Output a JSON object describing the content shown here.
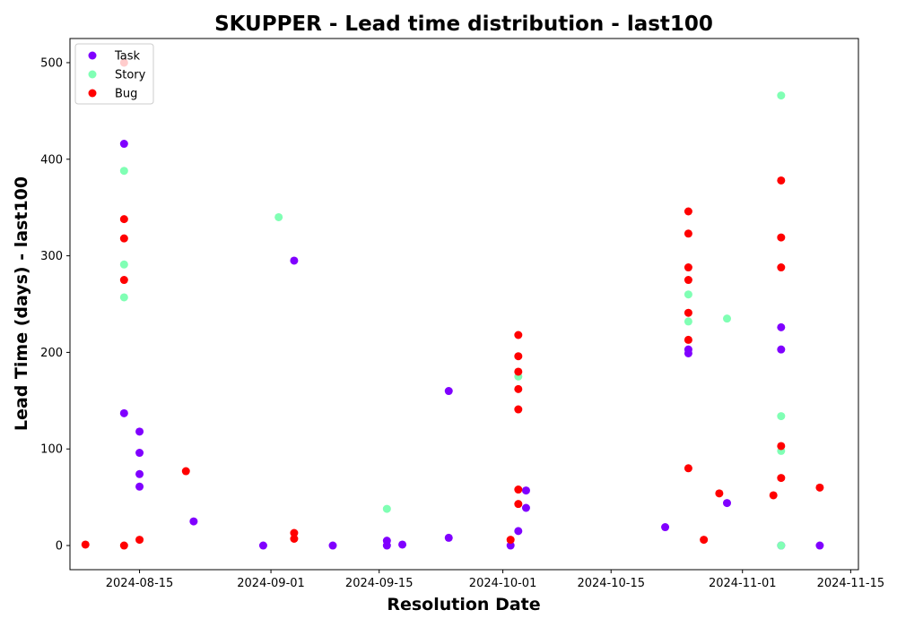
{
  "chart_data": {
    "type": "scatter",
    "title": "SKUPPER - Lead time distribution - last100",
    "xlabel": "Resolution Date",
    "ylabel": "Lead Time (days) - last100",
    "x_type": "date",
    "xlim": [
      "2024-08-06",
      "2024-11-16"
    ],
    "ylim": [
      -25,
      525
    ],
    "xticks": [
      "2024-08-15",
      "2024-09-01",
      "2024-09-15",
      "2024-10-01",
      "2024-10-15",
      "2024-11-01",
      "2024-11-15"
    ],
    "yticks": [
      0,
      100,
      200,
      300,
      400,
      500
    ],
    "grid": false,
    "legend_position": "top-left",
    "series": [
      {
        "name": "Task",
        "color": "#8000ff",
        "points": [
          {
            "x": "2024-08-13",
            "y": 416
          },
          {
            "x": "2024-08-13",
            "y": 137
          },
          {
            "x": "2024-08-15",
            "y": 118
          },
          {
            "x": "2024-08-15",
            "y": 96
          },
          {
            "x": "2024-08-15",
            "y": 74
          },
          {
            "x": "2024-08-15",
            "y": 61
          },
          {
            "x": "2024-08-22",
            "y": 25
          },
          {
            "x": "2024-08-31",
            "y": 0
          },
          {
            "x": "2024-09-04",
            "y": 295
          },
          {
            "x": "2024-09-09",
            "y": 0
          },
          {
            "x": "2024-09-16",
            "y": 5
          },
          {
            "x": "2024-09-16",
            "y": 0
          },
          {
            "x": "2024-09-18",
            "y": 1
          },
          {
            "x": "2024-09-24",
            "y": 160
          },
          {
            "x": "2024-09-24",
            "y": 8
          },
          {
            "x": "2024-10-02",
            "y": 0
          },
          {
            "x": "2024-10-03",
            "y": 15
          },
          {
            "x": "2024-10-04",
            "y": 57
          },
          {
            "x": "2024-10-04",
            "y": 39
          },
          {
            "x": "2024-10-22",
            "y": 19
          },
          {
            "x": "2024-10-25",
            "y": 203
          },
          {
            "x": "2024-10-25",
            "y": 199
          },
          {
            "x": "2024-10-30",
            "y": 44
          },
          {
            "x": "2024-11-06",
            "y": 226
          },
          {
            "x": "2024-11-06",
            "y": 203
          },
          {
            "x": "2024-11-06",
            "y": 0
          },
          {
            "x": "2024-11-11",
            "y": 0
          }
        ]
      },
      {
        "name": "Story",
        "color": "#80ffb4",
        "points": [
          {
            "x": "2024-08-13",
            "y": 388
          },
          {
            "x": "2024-08-13",
            "y": 291
          },
          {
            "x": "2024-08-13",
            "y": 257
          },
          {
            "x": "2024-09-02",
            "y": 340
          },
          {
            "x": "2024-09-16",
            "y": 38
          },
          {
            "x": "2024-10-03",
            "y": 175
          },
          {
            "x": "2024-10-25",
            "y": 260
          },
          {
            "x": "2024-10-25",
            "y": 232
          },
          {
            "x": "2024-10-30",
            "y": 235
          },
          {
            "x": "2024-11-06",
            "y": 466
          },
          {
            "x": "2024-11-06",
            "y": 134
          },
          {
            "x": "2024-11-06",
            "y": 98
          },
          {
            "x": "2024-11-06",
            "y": 0
          }
        ]
      },
      {
        "name": "Bug",
        "color": "#ff0000",
        "points": [
          {
            "x": "2024-08-08",
            "y": 1
          },
          {
            "x": "2024-08-13",
            "y": 500
          },
          {
            "x": "2024-08-13",
            "y": 338
          },
          {
            "x": "2024-08-13",
            "y": 318
          },
          {
            "x": "2024-08-13",
            "y": 275
          },
          {
            "x": "2024-08-13",
            "y": 0
          },
          {
            "x": "2024-08-15",
            "y": 6
          },
          {
            "x": "2024-08-21",
            "y": 77
          },
          {
            "x": "2024-09-04",
            "y": 13
          },
          {
            "x": "2024-09-04",
            "y": 7
          },
          {
            "x": "2024-10-03",
            "y": 218
          },
          {
            "x": "2024-10-03",
            "y": 196
          },
          {
            "x": "2024-10-03",
            "y": 180
          },
          {
            "x": "2024-10-03",
            "y": 162
          },
          {
            "x": "2024-10-03",
            "y": 141
          },
          {
            "x": "2024-10-03",
            "y": 58
          },
          {
            "x": "2024-10-03",
            "y": 43
          },
          {
            "x": "2024-10-02",
            "y": 6
          },
          {
            "x": "2024-10-25",
            "y": 346
          },
          {
            "x": "2024-10-25",
            "y": 323
          },
          {
            "x": "2024-10-25",
            "y": 288
          },
          {
            "x": "2024-10-25",
            "y": 275
          },
          {
            "x": "2024-10-25",
            "y": 241
          },
          {
            "x": "2024-10-25",
            "y": 213
          },
          {
            "x": "2024-10-25",
            "y": 80
          },
          {
            "x": "2024-10-27",
            "y": 6
          },
          {
            "x": "2024-10-29",
            "y": 54
          },
          {
            "x": "2024-11-05",
            "y": 52
          },
          {
            "x": "2024-11-06",
            "y": 378
          },
          {
            "x": "2024-11-06",
            "y": 319
          },
          {
            "x": "2024-11-06",
            "y": 288
          },
          {
            "x": "2024-11-06",
            "y": 103
          },
          {
            "x": "2024-11-06",
            "y": 70
          },
          {
            "x": "2024-11-11",
            "y": 60
          }
        ]
      }
    ]
  }
}
